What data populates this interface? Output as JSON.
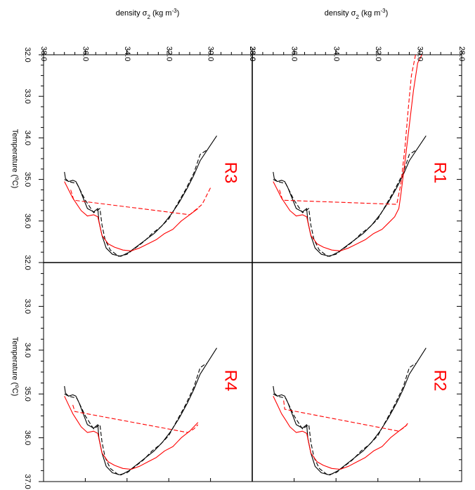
{
  "chart_data": {
    "type": "line",
    "x_axis": {
      "label": "density σ",
      "label_subscript": "2",
      "label_unit": " (kg m",
      "label_unit_sup": "-3",
      "label_unit_end": ")",
      "range": [
        38.0,
        28.0
      ],
      "ticks_left": [
        "38.0",
        "36.0",
        "34.0",
        "32.0",
        "30.0",
        "28.0"
      ],
      "ticks_right": [
        "38.0",
        "36.0",
        "34.0",
        "32.0",
        "30.0",
        "28.0"
      ]
    },
    "y_axis": {
      "label": "Temperature (",
      "label_sup": "o",
      "label_end": "C)",
      "range": [
        32.0,
        37.0
      ],
      "ticks_top": [
        "32.0",
        "33.0",
        "34.0",
        "35.0",
        "36.0",
        ""
      ],
      "ticks_bottom": [
        "32.0",
        "33.0",
        "34.0",
        "35.0",
        "36.0",
        "37.0"
      ]
    },
    "panels": [
      {
        "label": "R3",
        "position": "top-left",
        "series": [
          {
            "color": "#000000",
            "style": "solid",
            "x": [
              37.0,
              36.95,
              36.8,
              36.6,
              36.45,
              36.3,
              36.1,
              35.9,
              35.6,
              35.4,
              35.35,
              35.2,
              35.0,
              34.7,
              34.3,
              33.9,
              33.5,
              33.1,
              32.7,
              32.3,
              31.9,
              31.5,
              31.1,
              30.8,
              30.5,
              30.1,
              29.7
            ],
            "y": [
              34.82,
              34.98,
              35.05,
              35.02,
              35.05,
              35.2,
              35.45,
              35.7,
              35.78,
              35.7,
              36.0,
              36.35,
              36.65,
              36.8,
              36.85,
              36.75,
              36.6,
              36.45,
              36.3,
              36.1,
              35.85,
              35.55,
              35.2,
              34.9,
              34.55,
              34.25,
              33.95
            ]
          },
          {
            "color": "#000000",
            "style": "dashed",
            "x": [
              37.0,
              36.8,
              36.4,
              36.0,
              35.6,
              35.3,
              35.2,
              35.05,
              34.8,
              34.4,
              34.0,
              33.6,
              33.2,
              32.8,
              32.4,
              32.0,
              31.6,
              31.2,
              30.8,
              30.5,
              30.2
            ],
            "y": [
              35.0,
              35.05,
              35.1,
              35.5,
              35.8,
              35.7,
              36.1,
              36.45,
              36.7,
              36.85,
              36.8,
              36.65,
              36.5,
              36.3,
              36.15,
              35.95,
              35.6,
              35.25,
              34.85,
              34.4,
              34.3
            ]
          },
          {
            "color": "#ff0000",
            "style": "solid",
            "x": [
              37.0,
              36.8,
              36.6,
              36.4,
              36.2,
              35.9,
              35.6,
              35.4,
              35.2,
              34.9,
              34.6,
              34.2,
              33.8,
              33.4,
              33.0,
              32.6,
              32.2,
              31.8,
              31.4,
              31.0,
              30.6
            ],
            "y": [
              35.05,
              35.25,
              35.45,
              35.6,
              35.75,
              35.88,
              35.85,
              35.9,
              36.35,
              36.55,
              36.63,
              36.7,
              36.72,
              36.65,
              36.55,
              36.45,
              36.3,
              36.2,
              36.0,
              35.85,
              35.7
            ]
          },
          {
            "color": "#ff0000",
            "style": "dashed",
            "x": [
              36.7,
              36.55,
              31.0,
              30.4,
              30.0
            ],
            "y": [
              35.25,
              35.5,
              35.85,
              35.6,
              35.2
            ]
          }
        ]
      },
      {
        "label": "R1",
        "position": "top-right",
        "series": [
          {
            "color": "#000000",
            "style": "solid",
            "x": [
              37.0,
              36.95,
              36.8,
              36.6,
              36.45,
              36.3,
              36.1,
              35.9,
              35.6,
              35.4,
              35.35,
              35.2,
              35.0,
              34.7,
              34.3,
              33.9,
              33.5,
              33.1,
              32.7,
              32.3,
              31.9,
              31.5,
              31.1,
              30.8,
              30.5,
              30.1,
              29.7
            ],
            "y": [
              34.82,
              34.98,
              35.05,
              35.02,
              35.05,
              35.2,
              35.45,
              35.7,
              35.78,
              35.7,
              36.0,
              36.35,
              36.65,
              36.8,
              36.85,
              36.75,
              36.6,
              36.45,
              36.3,
              36.1,
              35.85,
              35.55,
              35.2,
              34.9,
              34.55,
              34.25,
              33.95
            ]
          },
          {
            "color": "#000000",
            "style": "dashed",
            "x": [
              37.0,
              36.8,
              36.4,
              36.0,
              35.6,
              35.3,
              35.2,
              35.05,
              34.8,
              34.4,
              34.0,
              33.6,
              33.2,
              32.8,
              32.4,
              32.0,
              31.6,
              31.2,
              30.8,
              30.5,
              30.2
            ],
            "y": [
              35.0,
              35.05,
              35.1,
              35.5,
              35.8,
              35.7,
              36.1,
              36.45,
              36.7,
              36.85,
              36.8,
              36.65,
              36.5,
              36.3,
              36.15,
              35.95,
              35.6,
              35.25,
              34.85,
              34.4,
              34.3
            ]
          },
          {
            "color": "#ff0000",
            "style": "solid",
            "x": [
              37.0,
              36.8,
              36.6,
              36.4,
              36.2,
              35.9,
              35.6,
              35.4,
              35.2,
              34.9,
              34.6,
              34.2,
              33.8,
              33.4,
              33.0,
              32.6,
              32.2,
              31.8,
              31.5,
              31.2,
              31.0,
              30.9,
              30.7,
              30.5,
              30.3,
              30.1,
              29.9
            ],
            "y": [
              35.05,
              35.25,
              35.45,
              35.6,
              35.75,
              35.88,
              35.85,
              35.9,
              36.35,
              36.55,
              36.63,
              36.7,
              36.72,
              36.65,
              36.55,
              36.45,
              36.3,
              36.2,
              36.05,
              35.9,
              35.7,
              35.35,
              34.55,
              33.7,
              32.85,
              32.2,
              32.0
            ]
          },
          {
            "color": "#ff0000",
            "style": "dashed",
            "x": [
              36.7,
              36.55,
              31.1,
              30.9,
              30.7,
              30.55,
              30.4,
              30.2
            ],
            "y": [
              35.25,
              35.5,
              35.6,
              35.1,
              34.2,
              33.3,
              32.5,
              32.0
            ]
          }
        ]
      },
      {
        "label": "R4",
        "position": "bottom-left",
        "series": [
          {
            "color": "#000000",
            "style": "solid",
            "x": [
              37.0,
              36.95,
              36.8,
              36.6,
              36.45,
              36.3,
              36.1,
              35.9,
              35.6,
              35.4,
              35.35,
              35.2,
              35.0,
              34.7,
              34.3,
              33.9,
              33.5,
              33.1,
              32.7,
              32.3,
              31.9,
              31.5,
              31.1,
              30.8,
              30.5,
              30.1,
              29.7
            ],
            "y": [
              34.82,
              34.98,
              35.05,
              35.02,
              35.05,
              35.2,
              35.45,
              35.7,
              35.78,
              35.7,
              36.0,
              36.35,
              36.65,
              36.8,
              36.85,
              36.75,
              36.6,
              36.45,
              36.3,
              36.1,
              35.85,
              35.55,
              35.2,
              34.9,
              34.55,
              34.25,
              33.95
            ]
          },
          {
            "color": "#000000",
            "style": "dashed",
            "x": [
              37.0,
              36.8,
              36.4,
              36.0,
              35.6,
              35.3,
              35.2,
              35.05,
              34.8,
              34.4,
              34.0,
              33.6,
              33.2,
              32.8,
              32.4,
              32.0,
              31.6,
              31.2,
              30.8,
              30.5,
              30.2
            ],
            "y": [
              35.0,
              35.05,
              35.1,
              35.5,
              35.8,
              35.7,
              36.1,
              36.45,
              36.7,
              36.85,
              36.8,
              36.65,
              36.5,
              36.3,
              36.15,
              35.95,
              35.6,
              35.25,
              34.85,
              34.4,
              34.3
            ]
          },
          {
            "color": "#ff0000",
            "style": "solid",
            "x": [
              37.0,
              36.8,
              36.6,
              36.4,
              36.2,
              35.9,
              35.6,
              35.4,
              35.2,
              34.9,
              34.6,
              34.2,
              33.8,
              33.4,
              33.0,
              32.6,
              32.2,
              31.8,
              31.4,
              31.0,
              30.6
            ],
            "y": [
              35.05,
              35.25,
              35.45,
              35.6,
              35.75,
              35.88,
              35.85,
              35.9,
              36.35,
              36.55,
              36.63,
              36.7,
              36.72,
              36.65,
              36.55,
              36.45,
              36.3,
              36.2,
              36.0,
              35.85,
              35.65
            ]
          },
          {
            "color": "#ff0000",
            "style": "dashed",
            "x": [
              36.6,
              36.5,
              31.1,
              30.8,
              30.6
            ],
            "y": [
              35.25,
              35.4,
              35.88,
              35.8,
              35.7
            ]
          }
        ]
      },
      {
        "label": "R2",
        "position": "bottom-right",
        "series": [
          {
            "color": "#000000",
            "style": "solid",
            "x": [
              37.0,
              36.95,
              36.8,
              36.6,
              36.45,
              36.3,
              36.1,
              35.9,
              35.6,
              35.4,
              35.35,
              35.2,
              35.0,
              34.7,
              34.3,
              33.9,
              33.5,
              33.1,
              32.7,
              32.3,
              31.9,
              31.5,
              31.1,
              30.8,
              30.5,
              30.1,
              29.7
            ],
            "y": [
              34.82,
              34.98,
              35.05,
              35.02,
              35.05,
              35.2,
              35.45,
              35.7,
              35.78,
              35.7,
              36.0,
              36.35,
              36.65,
              36.8,
              36.85,
              36.75,
              36.6,
              36.45,
              36.3,
              36.1,
              35.85,
              35.55,
              35.2,
              34.9,
              34.55,
              34.25,
              33.95
            ]
          },
          {
            "color": "#000000",
            "style": "dashed",
            "x": [
              37.0,
              36.8,
              36.4,
              36.0,
              35.6,
              35.3,
              35.2,
              35.05,
              34.8,
              34.4,
              34.0,
              33.6,
              33.2,
              32.8,
              32.4,
              32.0,
              31.6,
              31.2,
              30.8,
              30.5,
              30.2
            ],
            "y": [
              35.0,
              35.05,
              35.1,
              35.5,
              35.8,
              35.7,
              36.1,
              36.45,
              36.7,
              36.85,
              36.8,
              36.65,
              36.5,
              36.3,
              36.15,
              35.95,
              35.6,
              35.25,
              34.85,
              34.4,
              34.3
            ]
          },
          {
            "color": "#ff0000",
            "style": "solid",
            "x": [
              37.0,
              36.8,
              36.6,
              36.4,
              36.2,
              35.9,
              35.6,
              35.4,
              35.2,
              34.9,
              34.6,
              34.2,
              33.8,
              33.4,
              33.0,
              32.6,
              32.2,
              31.8,
              31.4,
              31.0,
              30.6
            ],
            "y": [
              35.05,
              35.25,
              35.45,
              35.6,
              35.75,
              35.88,
              35.85,
              35.9,
              36.35,
              36.55,
              36.63,
              36.7,
              36.72,
              36.65,
              36.55,
              36.45,
              36.3,
              36.2,
              36.0,
              35.85,
              35.7
            ]
          },
          {
            "color": "#ff0000",
            "style": "dashed",
            "x": [
              36.5,
              36.45,
              31.0,
              30.7,
              30.55
            ],
            "y": [
              35.15,
              35.35,
              35.85,
              35.75,
              35.65
            ]
          }
        ]
      }
    ]
  }
}
